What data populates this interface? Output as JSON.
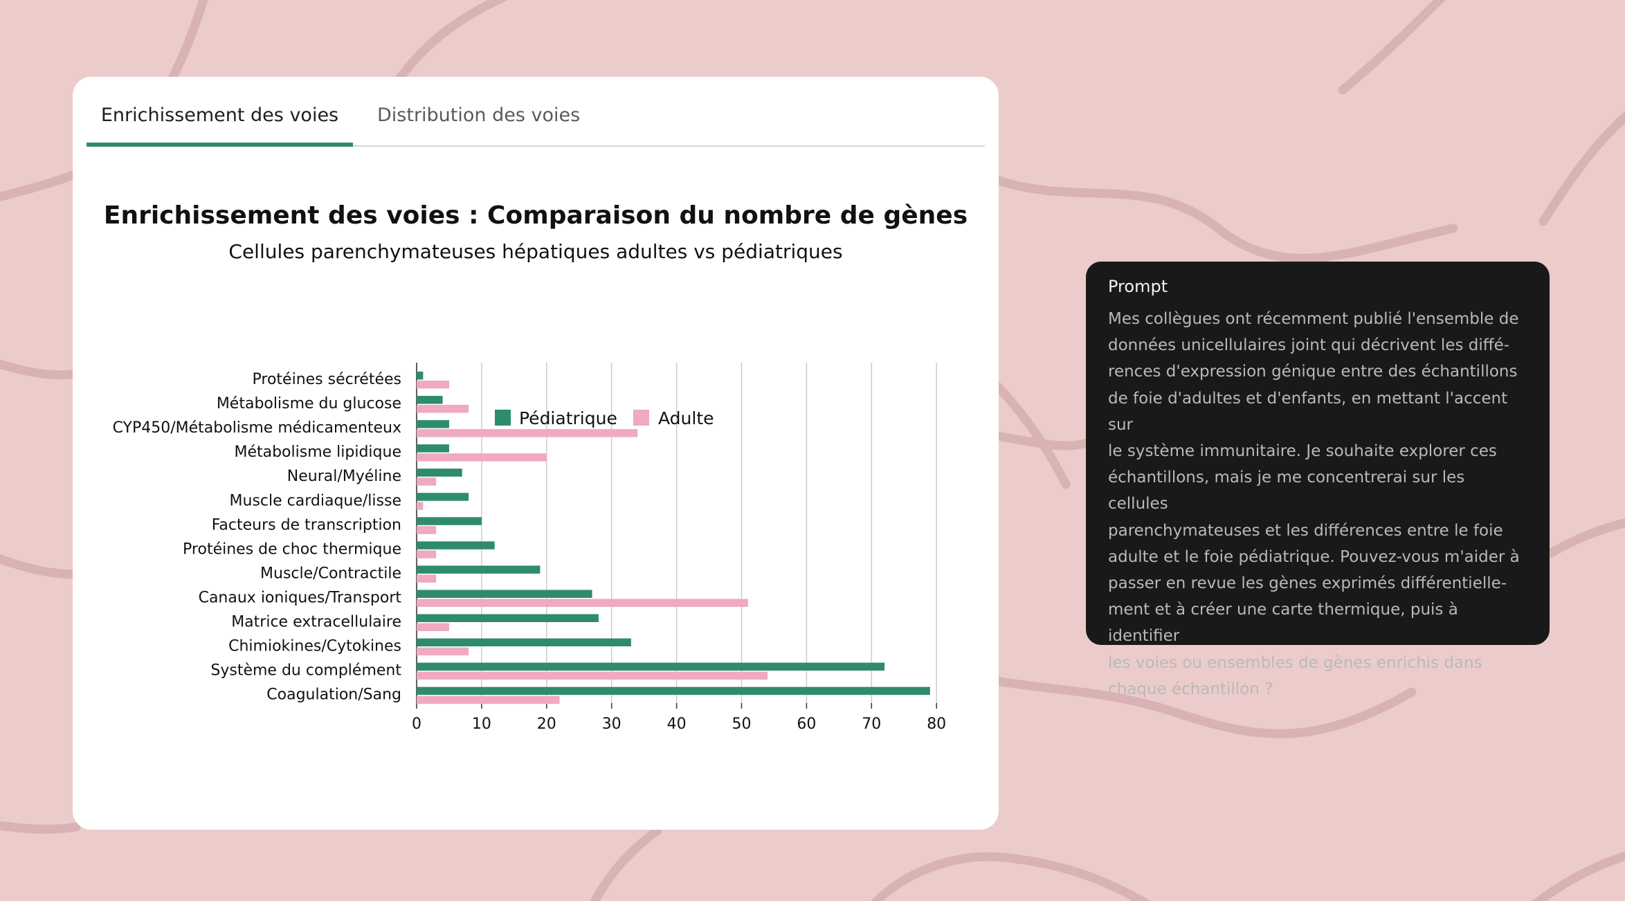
{
  "tabs": [
    {
      "label": "Enrichissement des voies",
      "active": true
    },
    {
      "label": "Distribution des voies",
      "active": false
    }
  ],
  "colors": {
    "pediatric": "#2e8b6e",
    "adult": "#f0a9c3",
    "accent": "#2e8b6e",
    "background": "#ebcccb"
  },
  "chart_data": {
    "type": "bar",
    "orientation": "horizontal",
    "title": "Enrichissement des voies : Comparaison du nombre de gènes",
    "subtitle": "Cellules parenchymateuses hépatiques adultes vs pédiatriques",
    "categories": [
      "Protéines sécrétées",
      "Métabolisme du glucose",
      "CYP450/Métabolisme médicamenteux",
      "Métabolisme lipidique",
      "Neural/Myéline",
      "Muscle cardiaque/lisse",
      "Facteurs de transcription",
      "Protéines de choc thermique",
      "Muscle/Contractile",
      "Canaux ioniques/Transport",
      "Matrice extracellulaire",
      "Chimiokines/Cytokines",
      "Système du complément",
      "Coagulation/Sang"
    ],
    "series": [
      {
        "name": "Pédiatrique",
        "color": "#2e8b6e",
        "values": [
          1,
          4,
          5,
          5,
          7,
          8,
          10,
          12,
          19,
          27,
          28,
          33,
          72,
          79
        ]
      },
      {
        "name": "Adulte",
        "color": "#f0a9c3",
        "values": [
          5,
          8,
          34,
          20,
          3,
          1,
          3,
          3,
          3,
          51,
          5,
          8,
          54,
          22
        ]
      }
    ],
    "xlim": [
      0,
      80
    ],
    "xticks": [
      0,
      10,
      20,
      30,
      40,
      50,
      60,
      70,
      80
    ],
    "grid": true,
    "legend": "top"
  },
  "prompt": {
    "title": "Prompt",
    "lines": [
      "Mes collègues ont récemment publié l'ensemble de",
      "données unicellulaires joint qui décrivent les diffé-",
      "rences d'expression génique entre des échantillons",
      "de foie d'adultes et d'enfants, en mettant l'accent sur",
      "le système immunitaire. Je souhaite explorer ces",
      "échantillons, mais je me concentrerai sur les cellules",
      "parenchymateuses et les différences entre le foie",
      "adulte et le foie pédiatrique. Pouvez-vous m'aider à",
      "passer en revue les gènes exprimés différentielle-",
      "ment et à créer une carte thermique, puis à identifier",
      "les voies ou ensembles de gènes enrichis dans",
      "chaque échantillon ?"
    ]
  }
}
